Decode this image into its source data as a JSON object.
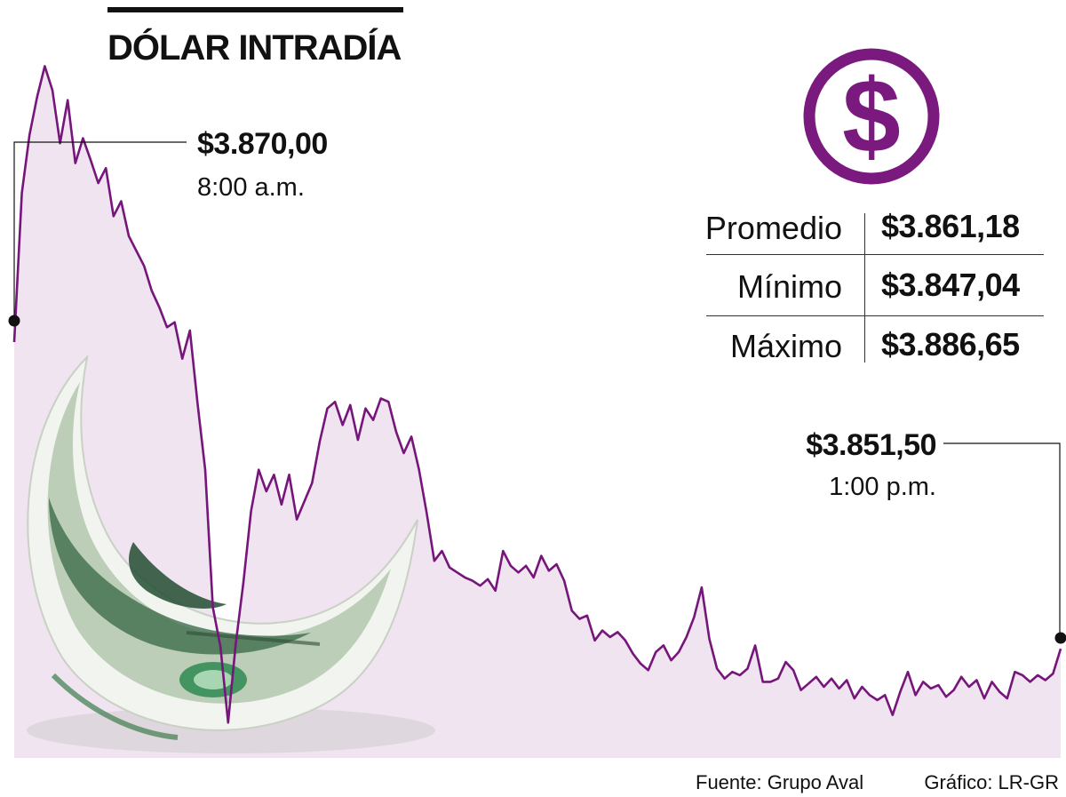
{
  "title": "DÓLAR INTRADÍA",
  "colors": {
    "line": "#76157a",
    "area": "#efe4f0",
    "accent": "#7a1a7e",
    "text": "#111111",
    "bill_green": "#3f7a4c"
  },
  "callouts": {
    "open": {
      "value": "$3.870,00",
      "time": "8:00 a.m."
    },
    "close": {
      "value": "$3.851,50",
      "time": "1:00 p.m."
    }
  },
  "stats": [
    {
      "label": "Promedio",
      "value": "$3.861,18"
    },
    {
      "label": "Mínimo",
      "value": "$3.847,04"
    },
    {
      "label": "Máximo",
      "value": "$3.886,65"
    }
  ],
  "footer": {
    "source": "Fuente: Grupo Aval",
    "credit": "Gráfico: LR-GR"
  },
  "icons": {
    "dollar": "dollar-sign-circle-icon",
    "bill": "hundred-dollar-bill-illustration"
  },
  "chart_data": {
    "type": "area",
    "series": [
      {
        "values": [
          3870.0,
          3879.0,
          3882.5,
          3884.8,
          3886.65,
          3885.2,
          3882.0,
          3884.6,
          3880.8,
          3882.3,
          3881.0,
          3879.6,
          3880.5,
          3877.6,
          3878.5,
          3876.4,
          3875.5,
          3874.6,
          3873.1,
          3872.1,
          3870.9,
          3871.2,
          3869.0,
          3870.7,
          3866.3,
          3862.3,
          3854.0,
          3851.6,
          3847.04,
          3851.8,
          3855.5,
          3859.8,
          3862.3,
          3861.0,
          3862.0,
          3860.2,
          3862.0,
          3859.3,
          3860.4,
          3861.5,
          3864.0,
          3866.0,
          3866.4,
          3865.0,
          3866.2,
          3864.1,
          3866.0,
          3865.3,
          3866.6,
          3866.4,
          3864.6,
          3863.3,
          3864.3,
          3862.3,
          3859.7,
          3856.8,
          3857.4,
          3856.4,
          3856.1,
          3855.8,
          3855.6,
          3855.3,
          3855.7,
          3855.0,
          3857.4,
          3856.5,
          3856.1,
          3856.5,
          3855.8,
          3857.1,
          3856.2,
          3856.6,
          3855.6,
          3853.8,
          3853.3,
          3853.5,
          3852.0,
          3852.6,
          3852.2,
          3852.5,
          3852.0,
          3851.2,
          3850.6,
          3850.2,
          3851.3,
          3851.7,
          3850.8,
          3851.3,
          3852.2,
          3853.4,
          3855.2,
          3852.1,
          3850.3,
          3849.7,
          3850.1,
          3849.9,
          3850.3,
          3851.7,
          3849.5,
          3849.5,
          3849.7,
          3850.7,
          3850.2,
          3849.0,
          3849.4,
          3849.8,
          3849.2,
          3849.7,
          3849.1,
          3849.6,
          3848.5,
          3849.2,
          3848.7,
          3848.4,
          3848.7,
          3847.5,
          3848.9,
          3850.1,
          3848.7,
          3849.5,
          3849.1,
          3849.3,
          3848.6,
          3849.0,
          3849.8,
          3849.2,
          3849.6,
          3848.5,
          3849.5,
          3848.9,
          3848.5,
          3850.1,
          3849.9,
          3849.5,
          3849.9,
          3849.6,
          3850.0,
          3851.5
        ]
      }
    ],
    "ylim": [
      3845.5,
      3888.5
    ],
    "grid": false,
    "legend": "none"
  }
}
